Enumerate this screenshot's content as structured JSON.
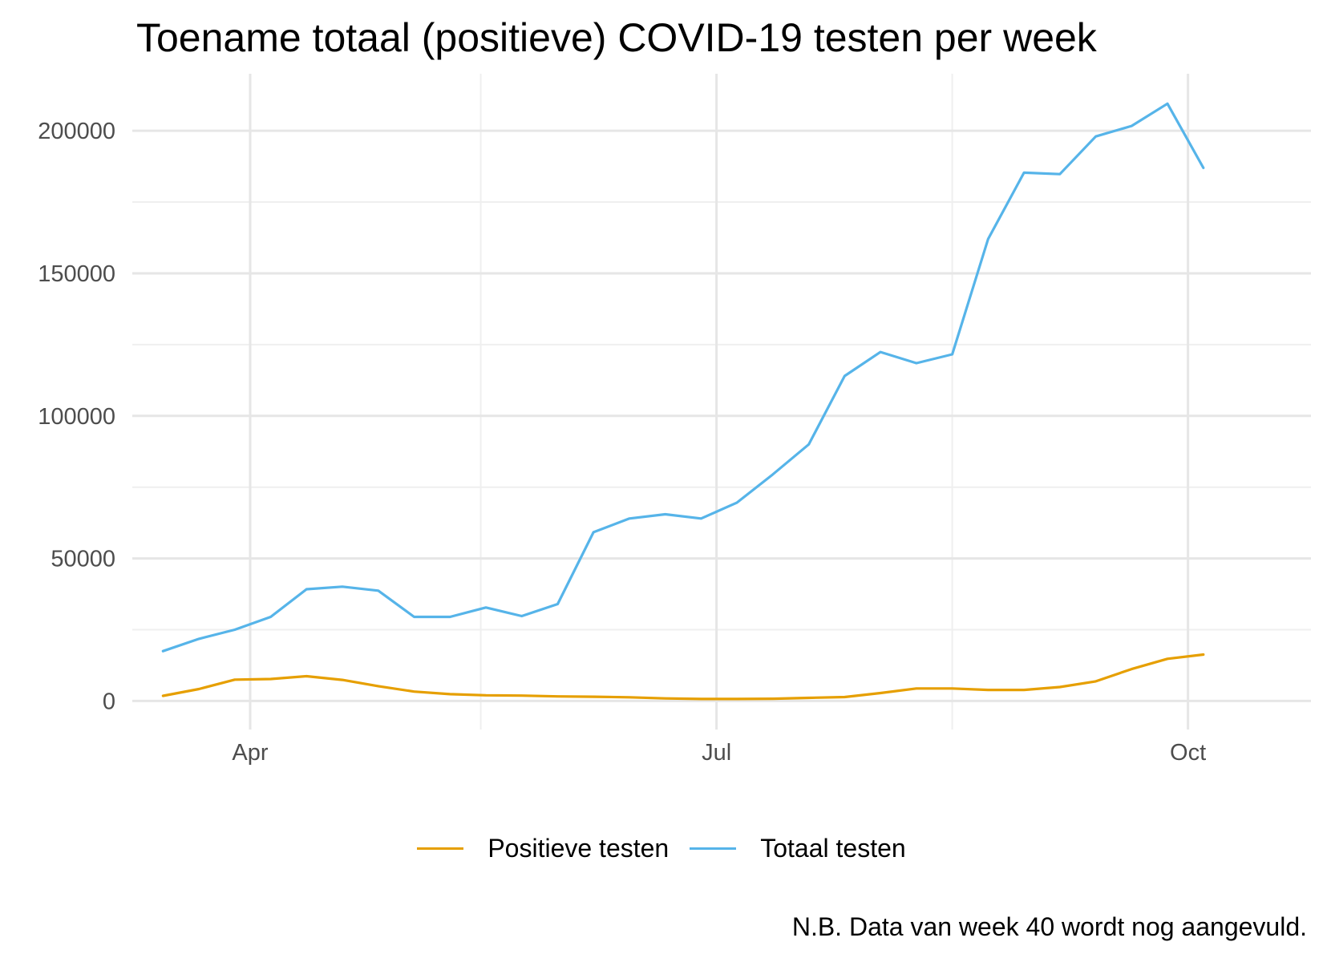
{
  "chart_data": {
    "type": "line",
    "title": "Toename totaal (positieve) COVID-19 testen per week",
    "caption": "N.B. Data van week 40 wordt nog aangevuld.",
    "xlabel": "",
    "ylabel": "",
    "x_axis": {
      "type": "date",
      "range": [
        "2020-03-09",
        "2020-10-25"
      ],
      "major_ticks": [
        {
          "date": "2020-04-01",
          "label": "Apr"
        },
        {
          "date": "2020-07-01",
          "label": "Jul"
        },
        {
          "date": "2020-10-01",
          "label": "Oct"
        }
      ],
      "minor_ticks": [
        "2020-05-16",
        "2020-08-16"
      ]
    },
    "y_axis": {
      "range": [
        -10000,
        220000
      ],
      "major_ticks": [
        0,
        50000,
        100000,
        150000,
        200000
      ],
      "minor_ticks": [
        25000,
        75000,
        125000,
        175000
      ]
    },
    "grid": true,
    "legend_position": "bottom",
    "x": [
      "2020-03-15",
      "2020-03-22",
      "2020-03-29",
      "2020-04-05",
      "2020-04-12",
      "2020-04-19",
      "2020-04-26",
      "2020-05-03",
      "2020-05-10",
      "2020-05-17",
      "2020-05-24",
      "2020-05-31",
      "2020-06-07",
      "2020-06-14",
      "2020-06-21",
      "2020-06-28",
      "2020-07-05",
      "2020-07-12",
      "2020-07-19",
      "2020-07-26",
      "2020-08-02",
      "2020-08-09",
      "2020-08-16",
      "2020-08-23",
      "2020-08-30",
      "2020-09-06",
      "2020-09-13",
      "2020-09-20",
      "2020-09-27",
      "2020-10-04"
    ],
    "series": [
      {
        "name": "Positieve testen",
        "color": "#E69F00",
        "values": [
          1800,
          4200,
          7500,
          7700,
          8700,
          7400,
          5200,
          3300,
          2400,
          2000,
          1900,
          1600,
          1500,
          1300,
          900,
          700,
          700,
          800,
          1100,
          1400,
          2800,
          4400,
          4400,
          3900,
          3900,
          4900,
          6900,
          11200,
          14800,
          16300
        ]
      },
      {
        "name": "Totaal testen",
        "color": "#56B4E9",
        "values": [
          17500,
          21800,
          25000,
          29500,
          39200,
          40100,
          38700,
          29500,
          29500,
          32800,
          29800,
          34000,
          59200,
          64000,
          65500,
          64000,
          69600,
          79500,
          90000,
          114000,
          122400,
          118500,
          121600,
          162000,
          185300,
          184800,
          198000,
          201700,
          209500,
          187000
        ]
      }
    ]
  }
}
